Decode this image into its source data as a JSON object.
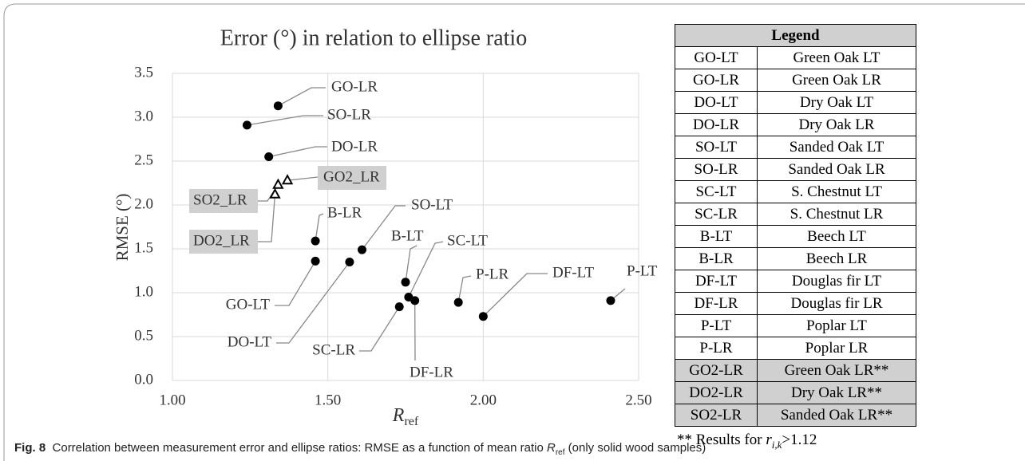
{
  "chart_data": {
    "type": "scatter",
    "title": "Error (°) in relation to ellipse ratio",
    "x_label": {
      "symbol": "R",
      "subscript": "ref"
    },
    "y_label": "RMSE (°)",
    "xlim": [
      1.0,
      2.5
    ],
    "xticks": [
      {
        "value": 1.0,
        "label": "1.00"
      },
      {
        "value": 1.5,
        "label": "1.50"
      },
      {
        "value": 2.0,
        "label": "2.00"
      },
      {
        "value": 2.5,
        "label": "2.50"
      }
    ],
    "ylim": [
      0.0,
      3.5
    ],
    "yticks": [
      {
        "value": 0,
        "label": "0.0"
      },
      {
        "value": 0.5,
        "label": "0.5"
      },
      {
        "value": 1,
        "label": "1.0"
      },
      {
        "value": 1.5,
        "label": "1.5"
      },
      {
        "value": 2,
        "label": "2.0"
      },
      {
        "value": 2.5,
        "label": "2.5"
      },
      {
        "value": 3,
        "label": "3.0"
      },
      {
        "value": 3.5,
        "label": "3.5"
      }
    ],
    "grid": true,
    "series": [
      {
        "marker": "circle",
        "color": "#000000",
        "labels": [
          "GO-LR",
          "SO-LR",
          "DO-LR",
          "B-LR",
          "GO-LT",
          "DO-LT",
          "SO-LT",
          "SC-LR",
          "B-LT",
          "SC-LT",
          "DF-LR",
          "P-LR",
          "DF-LT",
          "P-LT"
        ],
        "x": [
          1.34,
          1.24,
          1.31,
          1.46,
          1.46,
          1.57,
          1.61,
          1.73,
          1.75,
          1.76,
          1.78,
          1.92,
          2.0,
          2.41
        ],
        "y": [
          3.13,
          2.91,
          2.55,
          1.59,
          1.36,
          1.35,
          1.49,
          0.84,
          1.12,
          0.95,
          0.91,
          0.89,
          0.73,
          0.91
        ]
      },
      {
        "marker": "triangle",
        "color": "#000000",
        "labels": [
          "GO2_LR",
          "SO2_LR",
          "DO2_LR"
        ],
        "x": [
          1.37,
          1.34,
          1.33
        ],
        "y": [
          2.28,
          2.23,
          2.12
        ]
      }
    ]
  },
  "legend_table": {
    "header": "Legend",
    "rows": [
      [
        "GO-LT",
        "Green Oak LT"
      ],
      [
        "GO-LR",
        "Green Oak LR"
      ],
      [
        "DO-LT",
        "Dry Oak LT"
      ],
      [
        "DO-LR",
        "Dry Oak LR"
      ],
      [
        "SO-LT",
        "Sanded Oak LT"
      ],
      [
        "SO-LR",
        "Sanded Oak LR"
      ],
      [
        "SC-LT",
        "S. Chestnut LT"
      ],
      [
        "SC-LR",
        "S. Chestnut LR"
      ],
      [
        "B-LT",
        "Beech LT"
      ],
      [
        "B-LR",
        "Beech LR"
      ],
      [
        "DF-LT",
        "Douglas fir LT"
      ],
      [
        "DF-LR",
        "Douglas fir LR"
      ],
      [
        "P-LT",
        "Poplar LT"
      ],
      [
        "P-LR",
        "Poplar LR"
      ],
      [
        "GO2-LR",
        "Green Oak LR**"
      ],
      [
        "DO2-LR",
        "Dry Oak LR**"
      ],
      [
        "SO2-LR",
        "Sanded Oak LR**"
      ]
    ]
  },
  "footnote": {
    "prefix": "** Results for ",
    "symbol": "r",
    "subscript": "i,k",
    "suffix": ">1.12"
  },
  "caption": {
    "label": "Fig. 8",
    "text": "Correlation between measurement error and ellipse ratios: RMSE as a function of mean ratio ",
    "symbol": "R",
    "subscript": "ref",
    "suffix": " (only solid wood samples)"
  }
}
